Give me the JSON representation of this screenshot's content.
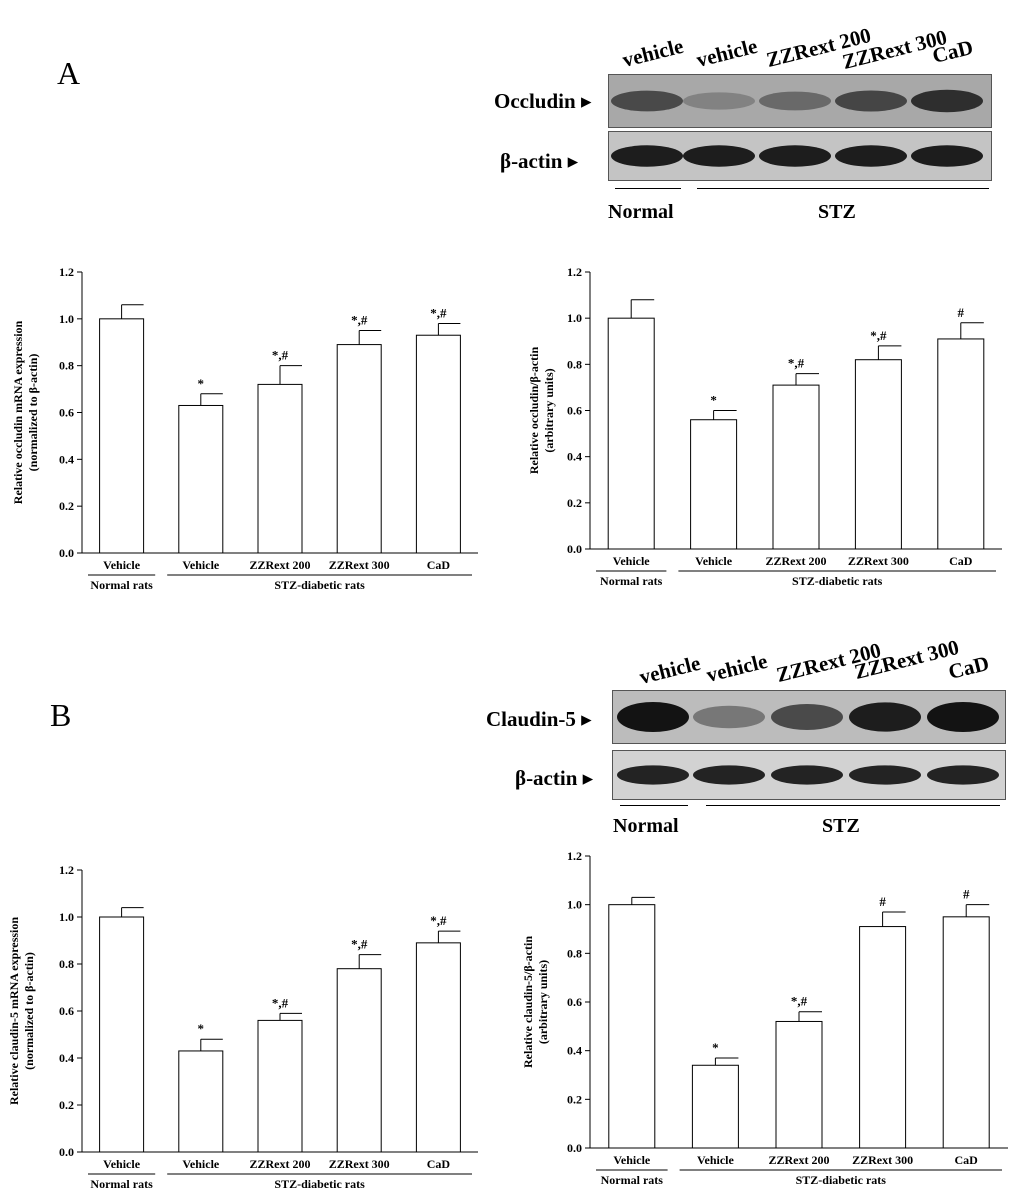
{
  "panels": {
    "A": {
      "letter": "A",
      "blot": {
        "lanes": [
          "vehicle",
          "vehicle",
          "ZZRext 200",
          "ZZRext 300",
          "CaD"
        ],
        "rows": [
          "Occludin",
          "β-actin"
        ],
        "groups": [
          "Normal",
          "STZ"
        ],
        "band_intensity": {
          "Occludin": [
            0.7,
            0.38,
            0.52,
            0.72,
            0.85
          ],
          "β-actin": [
            0.95,
            0.95,
            0.95,
            0.95,
            0.95
          ]
        }
      }
    },
    "B": {
      "letter": "B",
      "blot": {
        "lanes": [
          "vehicle",
          "vehicle",
          "ZZRext 200",
          "ZZRext 300",
          "CaD"
        ],
        "rows": [
          "Claudin-5",
          "β-actin"
        ],
        "groups": [
          "Normal",
          "STZ"
        ],
        "band_intensity": {
          "Claudin-5": [
            1.0,
            0.45,
            0.7,
            0.95,
            1.0
          ],
          "β-actin": [
            0.92,
            0.92,
            0.92,
            0.92,
            0.92
          ]
        }
      }
    }
  },
  "chart_data": [
    {
      "type": "bar",
      "panel": "A",
      "categories": [
        "Vehicle",
        "Vehicle",
        "ZZRext 200",
        "ZZRext 300",
        "CaD"
      ],
      "values": [
        1.0,
        0.63,
        0.72,
        0.89,
        0.93
      ],
      "errors": [
        0.06,
        0.05,
        0.08,
        0.06,
        0.05
      ],
      "annotations": [
        "",
        "*",
        "*,#",
        "*,#",
        "*,#"
      ],
      "ylabel": "Relative occludin mRNA expression (normalized to β-actin)",
      "ylabel_lines": [
        "Relative occludin mRNA expression",
        "(normalized to β-actin)"
      ],
      "groups": [
        {
          "label": "Normal rats",
          "start": 0,
          "end": 0
        },
        {
          "label": "STZ-diabetic rats",
          "start": 1,
          "end": 4
        }
      ],
      "ylim": [
        0,
        1.2
      ],
      "yticks": [
        "0.0",
        "0.2",
        "0.4",
        "0.6",
        "0.8",
        "1.0",
        "1.2"
      ]
    },
    {
      "type": "bar",
      "panel": "A",
      "categories": [
        "Vehicle",
        "Vehicle",
        "ZZRext 200",
        "ZZRext 300",
        "CaD"
      ],
      "values": [
        1.0,
        0.56,
        0.71,
        0.82,
        0.91
      ],
      "errors": [
        0.08,
        0.04,
        0.05,
        0.06,
        0.07
      ],
      "annotations": [
        "",
        "*",
        "*,#",
        "*,#",
        "#"
      ],
      "ylabel": "Relative occludin/β-actin (arbitrary units)",
      "ylabel_lines": [
        "Relative occludin/β-actin",
        "(arbitrary units)"
      ],
      "groups": [
        {
          "label": "Normal rats",
          "start": 0,
          "end": 0
        },
        {
          "label": "STZ-diabetic rats",
          "start": 1,
          "end": 4
        }
      ],
      "ylim": [
        0,
        1.2
      ],
      "yticks": [
        "0.0",
        "0.2",
        "0.4",
        "0.6",
        "0.8",
        "1.0",
        "1.2"
      ]
    },
    {
      "type": "bar",
      "panel": "B",
      "categories": [
        "Vehicle",
        "Vehicle",
        "ZZRext 200",
        "ZZRext 300",
        "CaD"
      ],
      "values": [
        1.0,
        0.43,
        0.56,
        0.78,
        0.89
      ],
      "errors": [
        0.04,
        0.05,
        0.03,
        0.06,
        0.05
      ],
      "annotations": [
        "",
        "*",
        "*,#",
        "*,#",
        "*,#"
      ],
      "ylabel": "Relative claudin-5 mRNA expression (normalized to β-actin)",
      "ylabel_lines": [
        "Relative claudin-5 mRNA expression",
        "(normalized to β-actin)"
      ],
      "groups": [
        {
          "label": "Normal rats",
          "start": 0,
          "end": 0
        },
        {
          "label": "STZ-diabetic rats",
          "start": 1,
          "end": 4
        }
      ],
      "ylim": [
        0,
        1.2
      ],
      "yticks": [
        "0.0",
        "0.2",
        "0.4",
        "0.6",
        "0.8",
        "1.0",
        "1.2"
      ]
    },
    {
      "type": "bar",
      "panel": "B",
      "categories": [
        "Vehicle",
        "Vehicle",
        "ZZRext 200",
        "ZZRext 300",
        "CaD"
      ],
      "values": [
        1.0,
        0.34,
        0.52,
        0.91,
        0.95
      ],
      "errors": [
        0.03,
        0.03,
        0.04,
        0.06,
        0.05
      ],
      "annotations": [
        "",
        "*",
        "*,#",
        "#",
        "#"
      ],
      "ylabel": "Relative claudin-5/β-actin (arbitrary units)",
      "ylabel_lines": [
        "Relative claudin-5/β-actin",
        "(arbitrary units)"
      ],
      "groups": [
        {
          "label": "Normal rats",
          "start": 0,
          "end": 0
        },
        {
          "label": "STZ-diabetic rats",
          "start": 1,
          "end": 4
        }
      ],
      "ylim": [
        0,
        1.2
      ],
      "yticks": [
        "0.0",
        "0.2",
        "0.4",
        "0.6",
        "0.8",
        "1.0",
        "1.2"
      ]
    }
  ]
}
